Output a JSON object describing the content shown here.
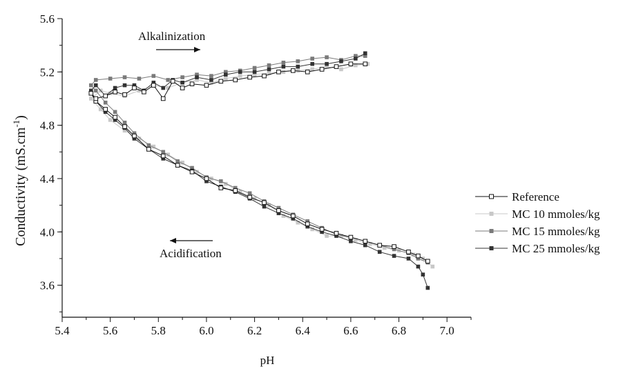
{
  "chart_data": {
    "type": "line",
    "xlabel": "pH",
    "ylabel": "Conductivity (mS.cm",
    "ylabel_sup": "-1",
    "ylabel_close": ")",
    "xlim": [
      5.4,
      7.1
    ],
    "ylim": [
      3.36,
      5.6
    ],
    "xticks": [
      "5.4",
      "5.6",
      "5.8",
      "6.0",
      "6.2",
      "6.4",
      "6.6",
      "6.8",
      "7.0"
    ],
    "yticks": [
      "3.6",
      "4.0",
      "4.4",
      "4.8",
      "5.2",
      "5.6"
    ],
    "grid": false,
    "legend_position": "right",
    "annotations": [
      {
        "text": "Alkalinization",
        "arrow": "right"
      },
      {
        "text": "Acidification",
        "arrow": "left"
      }
    ],
    "series": [
      {
        "name": "Reference",
        "marker": "open-square",
        "color": "#111111",
        "points": [
          [
            6.92,
            3.78
          ],
          [
            6.88,
            3.82
          ],
          [
            6.84,
            3.85
          ],
          [
            6.78,
            3.89
          ],
          [
            6.72,
            3.9
          ],
          [
            6.66,
            3.93
          ],
          [
            6.6,
            3.96
          ],
          [
            6.54,
            3.99
          ],
          [
            6.48,
            4.02
          ],
          [
            6.42,
            4.06
          ],
          [
            6.36,
            4.12
          ],
          [
            6.3,
            4.16
          ],
          [
            6.24,
            4.22
          ],
          [
            6.18,
            4.26
          ],
          [
            6.12,
            4.31
          ],
          [
            6.06,
            4.33
          ],
          [
            6.0,
            4.4
          ],
          [
            5.94,
            4.45
          ],
          [
            5.88,
            4.5
          ],
          [
            5.82,
            4.57
          ],
          [
            5.76,
            4.62
          ],
          [
            5.7,
            4.72
          ],
          [
            5.66,
            4.79
          ],
          [
            5.62,
            4.86
          ],
          [
            5.58,
            4.92
          ],
          [
            5.54,
            4.98
          ],
          [
            5.52,
            5.04
          ],
          [
            5.54,
            5.0
          ],
          [
            5.58,
            5.02
          ],
          [
            5.62,
            5.05
          ],
          [
            5.66,
            5.03
          ],
          [
            5.7,
            5.08
          ],
          [
            5.74,
            5.05
          ],
          [
            5.78,
            5.1
          ],
          [
            5.82,
            5.0
          ],
          [
            5.86,
            5.13
          ],
          [
            5.9,
            5.08
          ],
          [
            5.94,
            5.11
          ],
          [
            6.0,
            5.1
          ],
          [
            6.06,
            5.13
          ],
          [
            6.12,
            5.14
          ],
          [
            6.18,
            5.16
          ],
          [
            6.24,
            5.17
          ],
          [
            6.3,
            5.2
          ],
          [
            6.36,
            5.21
          ],
          [
            6.42,
            5.2
          ],
          [
            6.48,
            5.22
          ],
          [
            6.54,
            5.24
          ],
          [
            6.6,
            5.26
          ],
          [
            6.66,
            5.26
          ]
        ]
      },
      {
        "name": "MC 10 mmoles/kg",
        "marker": "filled-square",
        "color": "#c8c8c8",
        "points": [
          [
            6.94,
            3.74
          ],
          [
            6.9,
            3.8
          ],
          [
            6.86,
            3.83
          ],
          [
            6.8,
            3.86
          ],
          [
            6.74,
            3.88
          ],
          [
            6.68,
            3.91
          ],
          [
            6.62,
            3.94
          ],
          [
            6.56,
            3.97
          ],
          [
            6.5,
            3.97
          ],
          [
            6.44,
            4.02
          ],
          [
            6.38,
            4.07
          ],
          [
            6.32,
            4.12
          ],
          [
            6.26,
            4.2
          ],
          [
            6.2,
            4.25
          ],
          [
            6.14,
            4.3
          ],
          [
            6.08,
            4.36
          ],
          [
            6.02,
            4.4
          ],
          [
            5.96,
            4.45
          ],
          [
            5.9,
            4.52
          ],
          [
            5.84,
            4.58
          ],
          [
            5.78,
            4.64
          ],
          [
            5.72,
            4.7
          ],
          [
            5.66,
            4.76
          ],
          [
            5.6,
            4.84
          ],
          [
            5.56,
            4.92
          ],
          [
            5.52,
            5.0
          ],
          [
            5.56,
            5.06
          ],
          [
            5.6,
            5.04
          ],
          [
            5.66,
            5.02
          ],
          [
            5.72,
            5.06
          ],
          [
            5.78,
            5.1
          ],
          [
            5.84,
            5.08
          ],
          [
            5.9,
            5.12
          ],
          [
            5.96,
            5.14
          ],
          [
            6.02,
            5.12
          ],
          [
            6.08,
            5.15
          ],
          [
            6.14,
            5.17
          ],
          [
            6.2,
            5.18
          ],
          [
            6.26,
            5.19
          ],
          [
            6.32,
            5.2
          ],
          [
            6.38,
            5.21
          ],
          [
            6.44,
            5.22
          ],
          [
            6.5,
            5.24
          ],
          [
            6.56,
            5.22
          ],
          [
            6.62,
            5.25
          ],
          [
            6.67,
            5.26
          ]
        ]
      },
      {
        "name": "MC 15 mmoles/kg",
        "marker": "filled-square",
        "color": "#7a7a7a",
        "points": [
          [
            6.92,
            3.77
          ],
          [
            6.88,
            3.8
          ],
          [
            6.84,
            3.84
          ],
          [
            6.78,
            3.87
          ],
          [
            6.72,
            3.9
          ],
          [
            6.66,
            3.93
          ],
          [
            6.6,
            3.96
          ],
          [
            6.54,
            3.98
          ],
          [
            6.48,
            4.03
          ],
          [
            6.42,
            4.08
          ],
          [
            6.36,
            4.13
          ],
          [
            6.3,
            4.18
          ],
          [
            6.24,
            4.23
          ],
          [
            6.18,
            4.29
          ],
          [
            6.12,
            4.33
          ],
          [
            6.06,
            4.38
          ],
          [
            6.0,
            4.41
          ],
          [
            5.94,
            4.48
          ],
          [
            5.88,
            4.53
          ],
          [
            5.82,
            4.6
          ],
          [
            5.76,
            4.65
          ],
          [
            5.7,
            4.74
          ],
          [
            5.66,
            4.82
          ],
          [
            5.62,
            4.9
          ],
          [
            5.58,
            4.97
          ],
          [
            5.54,
            5.06
          ],
          [
            5.52,
            5.1
          ],
          [
            5.54,
            5.14
          ],
          [
            5.6,
            5.15
          ],
          [
            5.66,
            5.16
          ],
          [
            5.72,
            5.15
          ],
          [
            5.78,
            5.17
          ],
          [
            5.84,
            5.14
          ],
          [
            5.9,
            5.16
          ],
          [
            5.96,
            5.18
          ],
          [
            6.02,
            5.17
          ],
          [
            6.08,
            5.2
          ],
          [
            6.14,
            5.21
          ],
          [
            6.2,
            5.23
          ],
          [
            6.26,
            5.25
          ],
          [
            6.32,
            5.27
          ],
          [
            6.38,
            5.28
          ],
          [
            6.44,
            5.3
          ],
          [
            6.5,
            5.31
          ],
          [
            6.56,
            5.29
          ],
          [
            6.62,
            5.32
          ],
          [
            6.66,
            5.32
          ]
        ]
      },
      {
        "name": "MC 25 mmoles/kg",
        "marker": "filled-square",
        "color": "#333333",
        "points": [
          [
            6.92,
            3.58
          ],
          [
            6.9,
            3.68
          ],
          [
            6.88,
            3.74
          ],
          [
            6.84,
            3.8
          ],
          [
            6.78,
            3.82
          ],
          [
            6.72,
            3.85
          ],
          [
            6.66,
            3.9
          ],
          [
            6.6,
            3.93
          ],
          [
            6.54,
            3.97
          ],
          [
            6.48,
            4.0
          ],
          [
            6.42,
            4.04
          ],
          [
            6.36,
            4.1
          ],
          [
            6.3,
            4.14
          ],
          [
            6.24,
            4.19
          ],
          [
            6.18,
            4.25
          ],
          [
            6.12,
            4.3
          ],
          [
            6.06,
            4.34
          ],
          [
            6.0,
            4.38
          ],
          [
            5.94,
            4.46
          ],
          [
            5.88,
            4.5
          ],
          [
            5.82,
            4.55
          ],
          [
            5.76,
            4.62
          ],
          [
            5.7,
            4.7
          ],
          [
            5.66,
            4.78
          ],
          [
            5.62,
            4.84
          ],
          [
            5.58,
            4.9
          ],
          [
            5.54,
            4.98
          ],
          [
            5.52,
            5.06
          ],
          [
            5.54,
            5.1
          ],
          [
            5.58,
            5.02
          ],
          [
            5.62,
            5.08
          ],
          [
            5.66,
            5.1
          ],
          [
            5.7,
            5.1
          ],
          [
            5.74,
            5.06
          ],
          [
            5.78,
            5.12
          ],
          [
            5.82,
            5.08
          ],
          [
            5.86,
            5.14
          ],
          [
            5.9,
            5.12
          ],
          [
            5.96,
            5.16
          ],
          [
            6.02,
            5.14
          ],
          [
            6.08,
            5.18
          ],
          [
            6.14,
            5.2
          ],
          [
            6.2,
            5.2
          ],
          [
            6.26,
            5.22
          ],
          [
            6.32,
            5.24
          ],
          [
            6.38,
            5.24
          ],
          [
            6.44,
            5.26
          ],
          [
            6.5,
            5.26
          ],
          [
            6.56,
            5.28
          ],
          [
            6.62,
            5.3
          ],
          [
            6.66,
            5.34
          ]
        ]
      }
    ]
  }
}
